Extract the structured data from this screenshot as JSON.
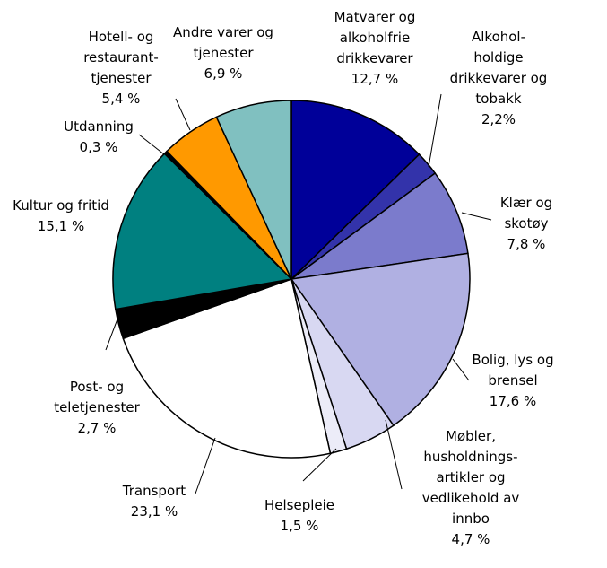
{
  "chart_data": {
    "type": "pie",
    "categories": [
      "Matvarer og alkoholfrie drikkevarer",
      "Alkohol-holdige drikkevarer og tobakk",
      "Klær og skotøy",
      "Bolig, lys og brensel",
      "Møbler, husholdnings-artikler og vedlikehold av innbo",
      "Helsepleie",
      "Transport",
      "Post- og teletjenester",
      "Kultur og fritid",
      "Utdanning",
      "Hotell- og restaurant-tjenester",
      "Andre varer og tjenester"
    ],
    "values": [
      12.7,
      2.2,
      7.8,
      17.6,
      4.7,
      1.5,
      23.1,
      2.7,
      15.1,
      0.3,
      5.4,
      6.9
    ],
    "value_labels": [
      "12,7 %",
      "2,2%",
      "7,8 %",
      "17,6 %",
      "4,7 %",
      "1,5 %",
      "23,1 %",
      "2,7 %",
      "15,1 %",
      "0,3 %",
      "5,4 %",
      "6,9 %"
    ],
    "colors": [
      "#000099",
      "#3333aa",
      "#7b7bcc",
      "#b0b0e2",
      "#d8d8f2",
      "#ececf8",
      "#ffffff",
      "#000000",
      "#008080",
      "#000000",
      "#ff9900",
      "#80c0c0"
    ]
  }
}
